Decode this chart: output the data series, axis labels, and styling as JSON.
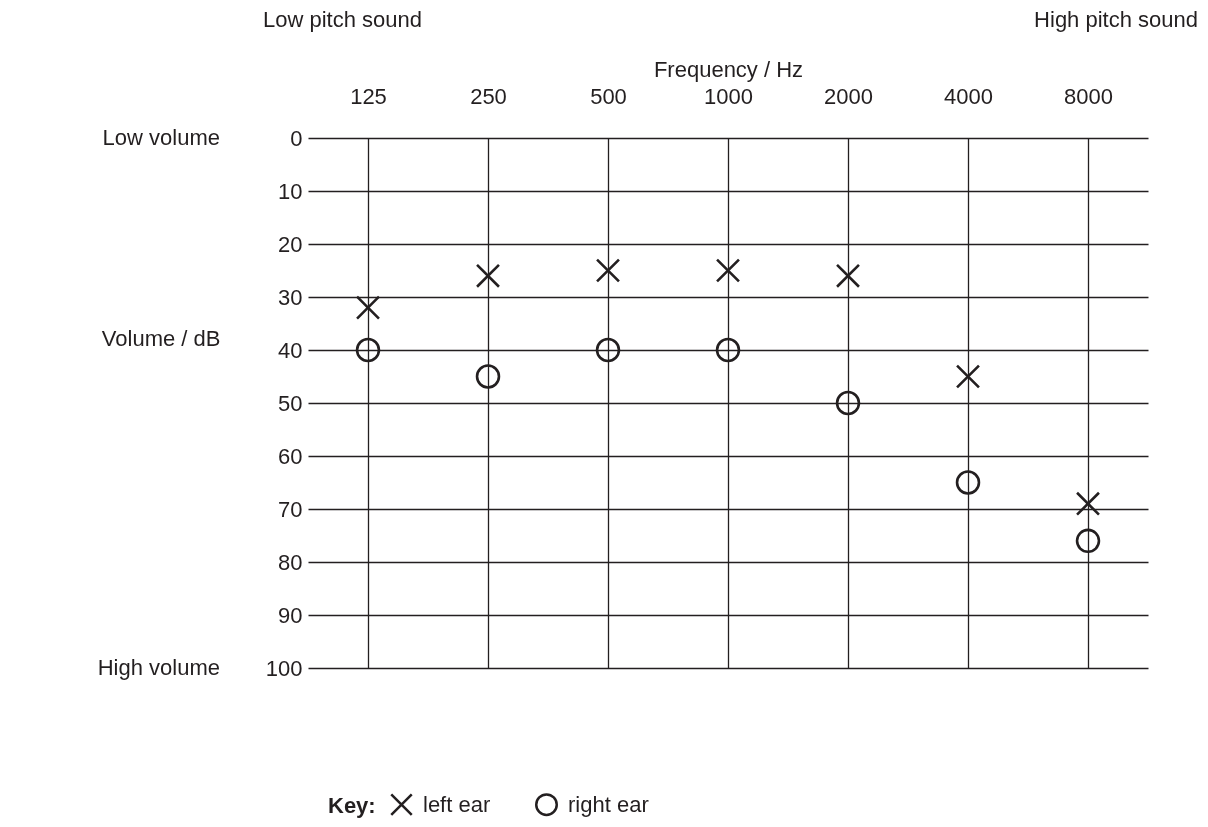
{
  "chart_data": {
    "type": "scatter",
    "xlabel": "Frequency / Hz",
    "ylabel": "Volume / dB",
    "legend_title": "Key:",
    "categories": [
      "125",
      "250",
      "500",
      "1000",
      "2000",
      "4000",
      "8000"
    ],
    "series": [
      {
        "name": "left ear",
        "color": "#231f20",
        "marker": "cross",
        "values": [
          32,
          26,
          25,
          25,
          26,
          45,
          69
        ]
      },
      {
        "name": "right ear",
        "color": "#231f20",
        "marker": "circle",
        "values": [
          40,
          45,
          40,
          40,
          50,
          65,
          76
        ]
      }
    ],
    "ylim": [
      100,
      0
    ],
    "yticks": [
      0,
      10,
      20,
      30,
      40,
      50,
      60,
      70,
      80,
      90,
      100
    ],
    "grid": true,
    "legend": "bottom",
    "annotations": [
      "Low pitch sound",
      "High pitch sound",
      "Low volume",
      "High volume"
    ]
  }
}
